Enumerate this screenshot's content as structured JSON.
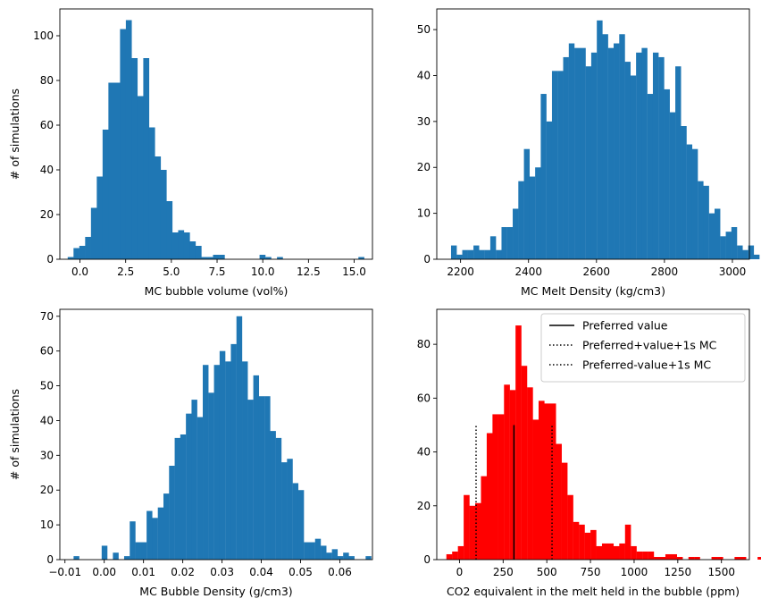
{
  "chart_data": [
    {
      "type": "bar",
      "panel": "top-left",
      "xlabel": "MC bubble volume (vol%)",
      "ylabel": "# of simulations",
      "xlim": [
        -1.1,
        16.0
      ],
      "ylim": [
        0,
        112
      ],
      "xticks": [
        0,
        2.5,
        5,
        7.5,
        10,
        12.5,
        15
      ],
      "xtick_labels": [
        "0.0",
        "2.5",
        "5.0",
        "7.5",
        "10.0",
        "12.5",
        "15.0"
      ],
      "yticks": [
        0,
        20,
        40,
        60,
        80,
        100
      ],
      "bar_color": "#1f77b4",
      "bin_start": -0.67,
      "bin_width": 0.318,
      "values": [
        1,
        5,
        6,
        10,
        23,
        37,
        58,
        79,
        79,
        103,
        107,
        90,
        73,
        90,
        59,
        46,
        40,
        26,
        12,
        13,
        12,
        8,
        6,
        1,
        1,
        2,
        2,
        0,
        0,
        0,
        0,
        0,
        0,
        2,
        1,
        0,
        1,
        0,
        0,
        0,
        0,
        0,
        0,
        0,
        0,
        0,
        0,
        0,
        0,
        0,
        1
      ]
    },
    {
      "type": "bar",
      "panel": "top-right",
      "xlabel": "MC Melt Density (kg/cm3)",
      "ylabel": "",
      "xlim": [
        2130,
        3050
      ],
      "ylim": [
        0,
        54.5
      ],
      "xticks": [
        2200,
        2400,
        2600,
        2800,
        3000
      ],
      "xtick_labels": [
        "2200",
        "2400",
        "2600",
        "2800",
        "3000"
      ],
      "yticks": [
        0,
        10,
        20,
        30,
        40,
        50
      ],
      "bar_color": "#1f77b4",
      "bin_start": 2172,
      "bin_width": 16.5,
      "values": [
        3,
        1,
        2,
        2,
        3,
        2,
        2,
        5,
        2,
        7,
        7,
        11,
        17,
        24,
        18,
        20,
        36,
        30,
        41,
        41,
        44,
        47,
        46,
        46,
        42,
        45,
        52,
        49,
        46,
        47,
        49,
        43,
        40,
        45,
        46,
        36,
        45,
        44,
        37,
        32,
        42,
        29,
        25,
        24,
        17,
        16,
        10,
        11,
        5,
        6,
        7,
        3,
        2,
        3,
        1,
        0,
        1,
        1
      ]
    },
    {
      "type": "bar",
      "panel": "bottom-left",
      "xlabel": "MC Bubble Density (g/cm3)",
      "ylabel": "# of simulations",
      "xlim": [
        -0.0113,
        0.0683
      ],
      "ylim": [
        0,
        72
      ],
      "xticks": [
        -0.01,
        0.0,
        0.01,
        0.02,
        0.03,
        0.04,
        0.05,
        0.06
      ],
      "xtick_labels": [
        "−0.01",
        "0.00",
        "0.01",
        "0.02",
        "0.03",
        "0.04",
        "0.05",
        "0.06"
      ],
      "yticks": [
        0,
        10,
        20,
        30,
        40,
        50,
        60,
        70
      ],
      "bar_color": "#1f77b4",
      "bin_start": -0.0078,
      "bin_width": 0.00143,
      "values": [
        1,
        0,
        0,
        0,
        0,
        4,
        0,
        2,
        0,
        1,
        11,
        5,
        5,
        14,
        12,
        15,
        19,
        27,
        35,
        36,
        42,
        46,
        41,
        56,
        48,
        56,
        60,
        57,
        62,
        70,
        57,
        46,
        53,
        47,
        47,
        37,
        35,
        28,
        29,
        22,
        20,
        5,
        5,
        6,
        4,
        2,
        3,
        1,
        2,
        1,
        0,
        0,
        1
      ]
    },
    {
      "type": "bar",
      "panel": "bottom-right",
      "xlabel": "CO2 equivalent in the melt held in the bubble (ppm)",
      "ylabel": "",
      "xlim": [
        -130,
        1660
      ],
      "ylim": [
        0,
        93
      ],
      "xticks": [
        0,
        250,
        500,
        750,
        1000,
        1250,
        1500
      ],
      "xtick_labels": [
        "0",
        "250",
        "500",
        "750",
        "1000",
        "1250",
        "1500"
      ],
      "yticks": [
        0,
        20,
        40,
        60,
        80
      ],
      "bar_color": "#ff0000",
      "bin_start": -75,
      "bin_width": 33,
      "values": [
        2,
        3,
        5,
        24,
        20,
        21,
        31,
        47,
        54,
        54,
        65,
        63,
        87,
        72,
        64,
        52,
        59,
        58,
        58,
        43,
        36,
        24,
        14,
        13,
        10,
        11,
        5,
        6,
        6,
        5,
        6,
        13,
        5,
        3,
        3,
        3,
        1,
        1,
        2,
        2,
        1,
        0,
        1,
        1,
        0,
        0,
        1,
        1,
        0,
        0,
        1,
        1,
        0,
        0,
        1,
        0,
        2,
        0,
        0,
        0,
        1
      ],
      "vlines": [
        {
          "x": 312,
          "y0": 0,
          "y1": 50,
          "style": "solid"
        },
        {
          "x": 95,
          "y0": 0,
          "y1": 50,
          "style": "dotted"
        },
        {
          "x": 530,
          "y0": 0,
          "y1": 50,
          "style": "dotted"
        }
      ],
      "legend_position": "top-right",
      "legend": [
        {
          "label": "Preferred value",
          "style": "solid"
        },
        {
          "label": "Preferred+value+1s MC",
          "style": "dotted"
        },
        {
          "label": "Preferred-value+1s MC",
          "style": "dotted"
        }
      ]
    }
  ]
}
